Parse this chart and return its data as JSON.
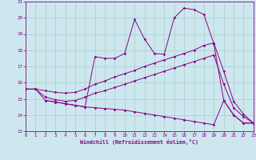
{
  "background_color": "#cce8ee",
  "grid_color": "#aacccc",
  "line_color": "#880088",
  "xlim": [
    0,
    23
  ],
  "ylim": [
    13,
    21
  ],
  "xticks": [
    0,
    1,
    2,
    3,
    4,
    5,
    6,
    7,
    8,
    9,
    10,
    11,
    12,
    13,
    14,
    15,
    16,
    17,
    18,
    19,
    20,
    21,
    22,
    23
  ],
  "yticks": [
    13,
    14,
    15,
    16,
    17,
    18,
    19,
    20,
    21
  ],
  "xlabel": "Windchill (Refroidissement éolien,°C)",
  "curves": [
    {
      "x": [
        0,
        1,
        2,
        3,
        4,
        5,
        6,
        7,
        8,
        9,
        10,
        11,
        12,
        13,
        14,
        15,
        16,
        17,
        18,
        19,
        20,
        21,
        22,
        23
      ],
      "y": [
        15.6,
        15.6,
        14.9,
        14.8,
        14.7,
        14.6,
        14.5,
        17.6,
        17.5,
        17.5,
        17.8,
        19.9,
        18.7,
        17.8,
        17.75,
        20.0,
        20.6,
        20.5,
        20.2,
        18.4,
        14.9,
        14.0,
        13.5,
        13.5
      ]
    },
    {
      "x": [
        0,
        1,
        2,
        3,
        4,
        5,
        6,
        7,
        8,
        9,
        10,
        11,
        12,
        13,
        14,
        15,
        16,
        17,
        18,
        19,
        20,
        21,
        22,
        23
      ],
      "y": [
        15.6,
        15.6,
        15.5,
        15.4,
        15.35,
        15.4,
        15.6,
        15.9,
        16.1,
        16.35,
        16.55,
        16.75,
        17.0,
        17.2,
        17.4,
        17.6,
        17.8,
        18.0,
        18.3,
        18.45,
        16.7,
        14.85,
        14.05,
        13.5
      ]
    },
    {
      "x": [
        0,
        1,
        2,
        3,
        4,
        5,
        6,
        7,
        8,
        9,
        10,
        11,
        12,
        13,
        14,
        15,
        16,
        17,
        18,
        19,
        20,
        21,
        22,
        23
      ],
      "y": [
        15.6,
        15.6,
        15.1,
        14.95,
        14.85,
        14.9,
        15.1,
        15.35,
        15.5,
        15.7,
        15.9,
        16.1,
        16.3,
        16.5,
        16.7,
        16.9,
        17.1,
        17.3,
        17.5,
        17.7,
        15.9,
        14.45,
        13.9,
        13.5
      ]
    },
    {
      "x": [
        2,
        3,
        4,
        5,
        6,
        7,
        8,
        9,
        10,
        11,
        12,
        13,
        14,
        15,
        16,
        17,
        18,
        19,
        20,
        21,
        22,
        23
      ],
      "y": [
        14.9,
        14.8,
        14.7,
        14.6,
        14.5,
        14.45,
        14.4,
        14.35,
        14.3,
        14.2,
        14.1,
        14.0,
        13.9,
        13.8,
        13.7,
        13.6,
        13.5,
        13.4,
        14.9,
        14.0,
        13.5,
        13.5
      ]
    }
  ]
}
